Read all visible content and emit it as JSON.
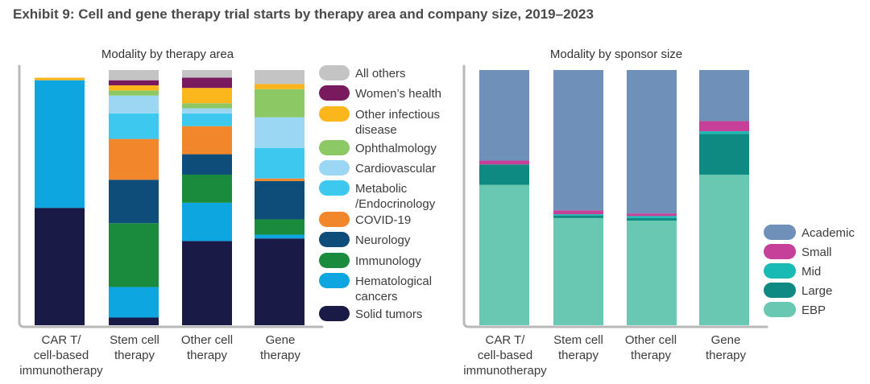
{
  "title": "Exhibit 9: Cell and gene therapy trial starts by therapy area and company size, 2019–2023",
  "chart_data": [
    {
      "type": "bar",
      "stacked": true,
      "normalized_percent": true,
      "title": "Modality by therapy area",
      "ylim": [
        0,
        100
      ],
      "categories": [
        [
          "CAR T/",
          "cell-based",
          "immunotherapy"
        ],
        [
          "Stem cell",
          "therapy"
        ],
        [
          "Other cell",
          "therapy"
        ],
        [
          "Gene",
          "therapy"
        ]
      ],
      "series": [
        {
          "name": "Solid tumors",
          "color": "#1a1a46",
          "values": [
            46,
            3,
            33,
            34
          ]
        },
        {
          "name": [
            "Hematological",
            "cancers"
          ],
          "color": "#0ea6e0",
          "values": [
            50,
            12,
            15,
            1.5
          ]
        },
        {
          "name": "Immunology",
          "color": "#1a8a3c",
          "values": [
            0,
            25,
            11,
            6
          ]
        },
        {
          "name": "Neurology",
          "color": "#0e4c7a",
          "values": [
            0,
            17,
            8,
            15
          ]
        },
        {
          "name": "COVID-19",
          "color": "#f2862a",
          "values": [
            0,
            16,
            11,
            1
          ]
        },
        {
          "name": [
            "Metabolic",
            "/Endocrinology"
          ],
          "color": "#3cc8ef",
          "values": [
            0,
            10,
            5,
            12
          ]
        },
        {
          "name": "Cardiovascular",
          "color": "#9bd7f2",
          "values": [
            0,
            7,
            2,
            12
          ]
        },
        {
          "name": "Ophthalmology",
          "color": "#8cc864",
          "values": [
            0,
            2,
            2,
            11
          ]
        },
        {
          "name": [
            "Other infectious",
            "disease"
          ],
          "color": "#fbb61c",
          "values": [
            1,
            2,
            6,
            2
          ]
        },
        {
          "name": "Women’s health",
          "color": "#7a1a5e",
          "values": [
            0,
            2,
            4,
            0
          ]
        },
        {
          "name": "All others",
          "color": "#c4c4c4",
          "values": [
            0,
            4,
            3,
            5.5
          ]
        }
      ]
    },
    {
      "type": "bar",
      "stacked": true,
      "normalized_percent": true,
      "title": "Modality by sponsor size",
      "ylim": [
        0,
        100
      ],
      "categories": [
        [
          "CAR T/",
          "cell-based",
          "immunotherapy"
        ],
        [
          "Stem cell",
          "therapy"
        ],
        [
          "Other cell",
          "therapy"
        ],
        [
          "Gene",
          "therapy"
        ]
      ],
      "series": [
        {
          "name": "EBP",
          "color": "#68c8b2",
          "values": [
            55,
            42,
            41,
            59
          ]
        },
        {
          "name": "Large",
          "color": "#0e8a82",
          "values": [
            8,
            1,
            1,
            16
          ]
        },
        {
          "name": "Mid",
          "color": "#19bab4",
          "values": [
            0,
            0.5,
            0.8,
            1
          ]
        },
        {
          "name": "Small",
          "color": "#c6409a",
          "values": [
            1.5,
            1.5,
            1,
            4
          ]
        },
        {
          "name": "Academic",
          "color": "#6f90b8",
          "values": [
            35.5,
            55,
            56.2,
            20
          ]
        }
      ]
    }
  ]
}
